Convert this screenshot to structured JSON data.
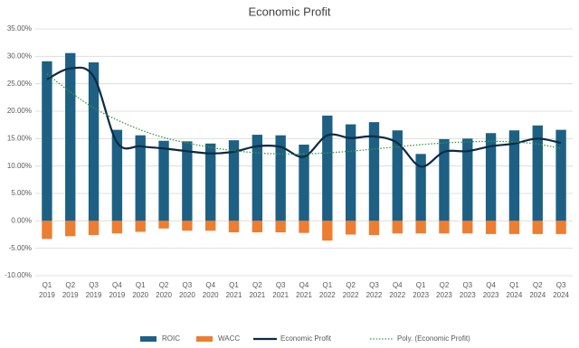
{
  "chart_data": {
    "type": "bar-line",
    "title": "Economic Profit",
    "categories": [
      [
        "Q1",
        "2019"
      ],
      [
        "Q2",
        "2019"
      ],
      [
        "Q3",
        "2019"
      ],
      [
        "Q4",
        "2019"
      ],
      [
        "Q1",
        "2020"
      ],
      [
        "Q2",
        "2020"
      ],
      [
        "Q3",
        "2020"
      ],
      [
        "Q4",
        "2020"
      ],
      [
        "Q1",
        "2021"
      ],
      [
        "Q2",
        "2021"
      ],
      [
        "Q3",
        "2021"
      ],
      [
        "Q4",
        "2021"
      ],
      [
        "Q1",
        "2022"
      ],
      [
        "Q2",
        "2022"
      ],
      [
        "Q3",
        "2022"
      ],
      [
        "Q4",
        "2022"
      ],
      [
        "Q1",
        "2023"
      ],
      [
        "Q2",
        "2023"
      ],
      [
        "Q3",
        "2023"
      ],
      [
        "Q4",
        "2023"
      ],
      [
        "Q1",
        "2024"
      ],
      [
        "Q2",
        "2024"
      ],
      [
        "Q3",
        "2024"
      ]
    ],
    "series": [
      {
        "name": "ROIC",
        "kind": "bar",
        "color": "#1d6084",
        "values": [
          29.1,
          30.6,
          28.9,
          16.6,
          15.6,
          14.6,
          14.5,
          14.1,
          14.7,
          15.7,
          15.6,
          13.9,
          19.2,
          17.6,
          18.0,
          16.5,
          12.2,
          14.9,
          15.0,
          16.0,
          16.5,
          17.4,
          16.6
        ]
      },
      {
        "name": "WACC",
        "kind": "bar",
        "color": "#ed7d31",
        "values": [
          -3.3,
          -2.8,
          -2.6,
          -2.3,
          -2.0,
          -1.4,
          -1.8,
          -1.8,
          -2.1,
          -2.1,
          -2.1,
          -2.2,
          -3.6,
          -2.5,
          -2.6,
          -2.3,
          -2.3,
          -2.3,
          -2.3,
          -2.4,
          -2.4,
          -2.4,
          -2.4
        ]
      },
      {
        "name": "Economic Profit",
        "kind": "line",
        "color": "#0b2a45",
        "values": [
          25.8,
          27.8,
          26.3,
          14.3,
          13.6,
          13.2,
          12.7,
          12.3,
          12.6,
          13.6,
          13.5,
          11.7,
          15.6,
          15.1,
          15.4,
          14.2,
          9.9,
          12.6,
          12.7,
          13.6,
          14.1,
          15.0,
          14.2
        ]
      },
      {
        "name": "Poly. (Economic Profit)",
        "kind": "dotted",
        "color": "#3a9a3a",
        "values": [
          26.8,
          23.5,
          20.6,
          18.4,
          16.6,
          15.2,
          14.2,
          13.4,
          12.8,
          12.4,
          12.2,
          12.2,
          12.4,
          12.7,
          13.1,
          13.5,
          13.9,
          14.2,
          14.4,
          14.5,
          14.4,
          14.0,
          13.2
        ]
      }
    ],
    "ylim": [
      -10,
      35
    ],
    "yticks": [
      {
        "value": -10,
        "label": "-10.00%"
      },
      {
        "value": -5,
        "label": "-5.00%"
      },
      {
        "value": 0,
        "label": "0.00%"
      },
      {
        "value": 5,
        "label": "5.00%"
      },
      {
        "value": 10,
        "label": "10.00%"
      },
      {
        "value": 15,
        "label": "15.00%"
      },
      {
        "value": 20,
        "label": "20.00%"
      },
      {
        "value": 25,
        "label": "25.00%"
      },
      {
        "value": 30,
        "label": "30.00%"
      },
      {
        "value": 35,
        "label": "35.00%"
      }
    ],
    "grid": true,
    "legend": "bottom"
  }
}
